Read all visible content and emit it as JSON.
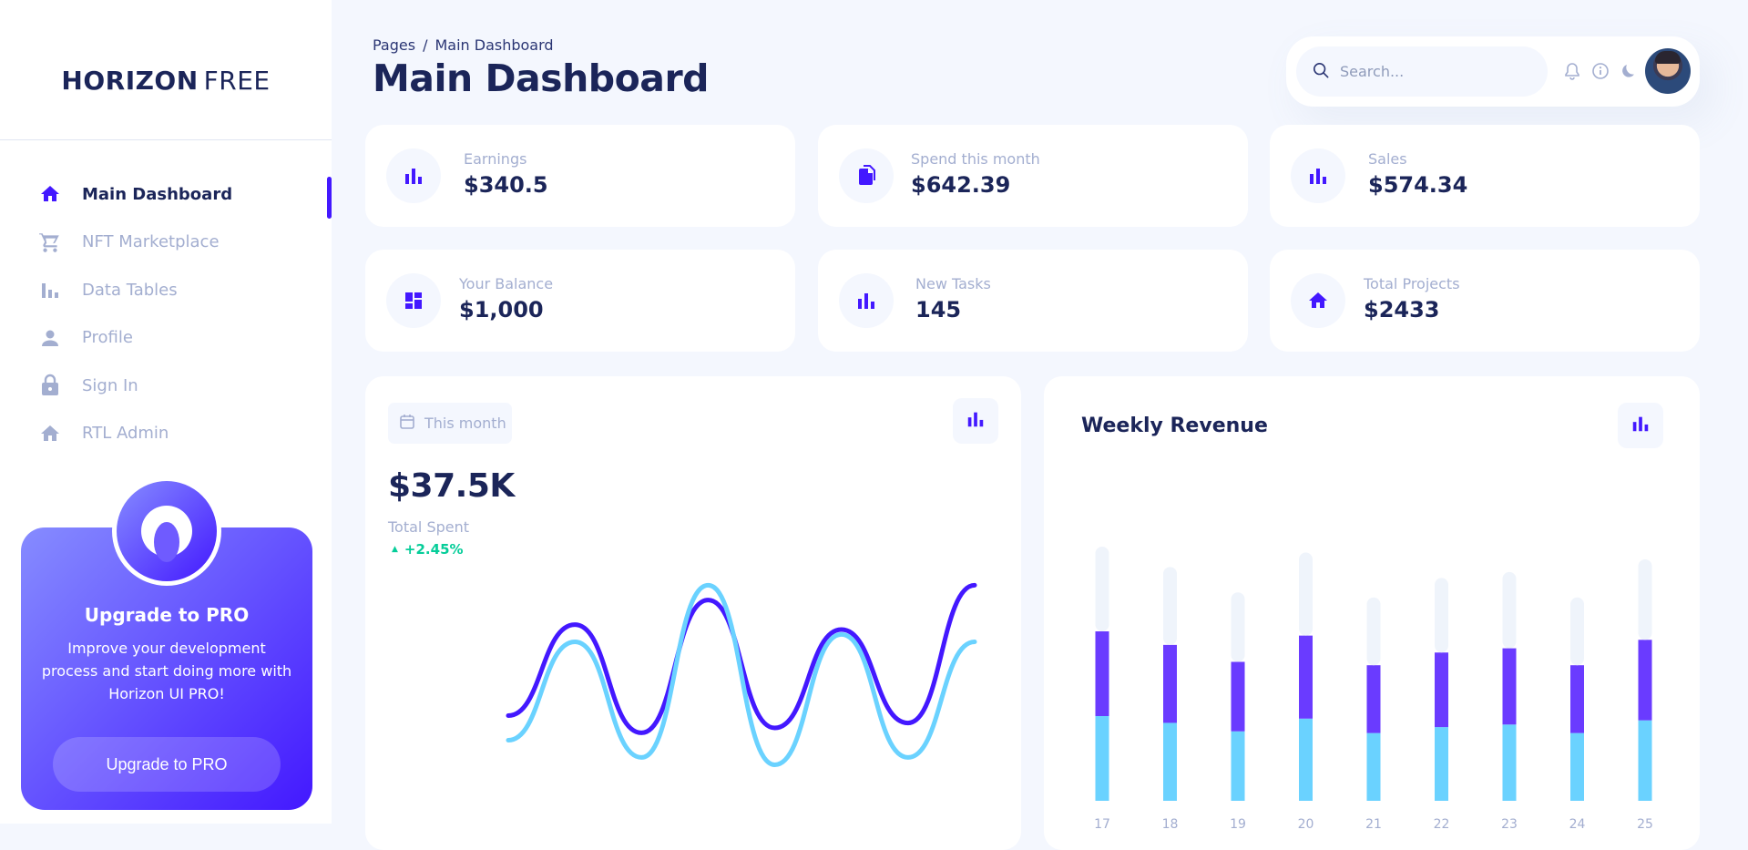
{
  "brand": {
    "bold": "HORIZON",
    "light": "FREE"
  },
  "sidebar": {
    "items": [
      {
        "label": "Main Dashboard",
        "icon": "home-icon",
        "active": true
      },
      {
        "label": "NFT Marketplace",
        "icon": "cart-icon",
        "active": false
      },
      {
        "label": "Data Tables",
        "icon": "bar-chart-icon",
        "active": false
      },
      {
        "label": "Profile",
        "icon": "person-icon",
        "active": false
      },
      {
        "label": "Sign In",
        "icon": "lock-icon",
        "active": false
      },
      {
        "label": "RTL Admin",
        "icon": "home-icon",
        "active": false
      }
    ],
    "promo": {
      "title": "Upgrade to PRO",
      "text": "Improve your development process and start doing more with Horizon UI PRO!",
      "button": "Upgrade to PRO"
    }
  },
  "header": {
    "breadcrumb": {
      "root": "Pages",
      "separator": "/",
      "current": "Main Dashboard"
    },
    "title": "Main Dashboard",
    "search": {
      "placeholder": "Search...",
      "value": ""
    }
  },
  "stats": [
    {
      "label": "Earnings",
      "value": "$340.5",
      "icon": "bar-chart-icon"
    },
    {
      "label": "Spend this month",
      "value": "$642.39",
      "icon": "files-icon"
    },
    {
      "label": "Sales",
      "value": "$574.34",
      "icon": "bar-chart-icon"
    },
    {
      "label": "Your Balance",
      "value": "$1,000",
      "icon": "dashboard-icon"
    },
    {
      "label": "New Tasks",
      "value": "145",
      "icon": "bar-chart-icon"
    },
    {
      "label": "Total Projects",
      "value": "$2433",
      "icon": "home-icon"
    }
  ],
  "total_spent_card": {
    "period": "This month",
    "value": "$37.5K",
    "label": "Total Spent",
    "change": "+2.45%"
  },
  "weekly_revenue": {
    "title": "Weekly Revenue"
  },
  "colors": {
    "brand": "#4318FF",
    "accent_light": "#6AD2FF",
    "text_primary": "#1B2559",
    "text_secondary": "#A3AED0",
    "background": "#F4F7FE",
    "success": "#05CD99"
  },
  "chart_data": [
    {
      "type": "line",
      "title": "",
      "xlabel": "",
      "ylabel": "",
      "x": [
        0,
        1,
        2,
        3,
        4,
        5,
        6,
        7
      ],
      "series": [
        {
          "values": [
            0.25,
            0.62,
            0.18,
            0.72,
            0.2,
            0.6,
            0.22,
            0.78
          ],
          "color": "#4318FF"
        },
        {
          "values": [
            0.15,
            0.55,
            0.08,
            0.78,
            0.05,
            0.58,
            0.08,
            0.55
          ],
          "color": "#6AD2FF"
        }
      ],
      "ylim": [
        0,
        1
      ],
      "grid": false
    },
    {
      "type": "bar",
      "title": "Weekly Revenue",
      "stacked": true,
      "categories": [
        "17",
        "18",
        "19",
        "20",
        "21",
        "22",
        "23",
        "24",
        "25"
      ],
      "series": [
        {
          "values": [
            100,
            92,
            82,
            97,
            80,
            87,
            90,
            80,
            95
          ],
          "color": "#6AD2FF"
        },
        {
          "values": [
            100,
            92,
            82,
            98,
            80,
            88,
            90,
            80,
            95
          ],
          "color": "#6A3BFF"
        },
        {
          "values": [
            100,
            92,
            82,
            98,
            80,
            88,
            90,
            80,
            95
          ],
          "color": "#EFF4FB"
        }
      ],
      "grid": false
    }
  ]
}
